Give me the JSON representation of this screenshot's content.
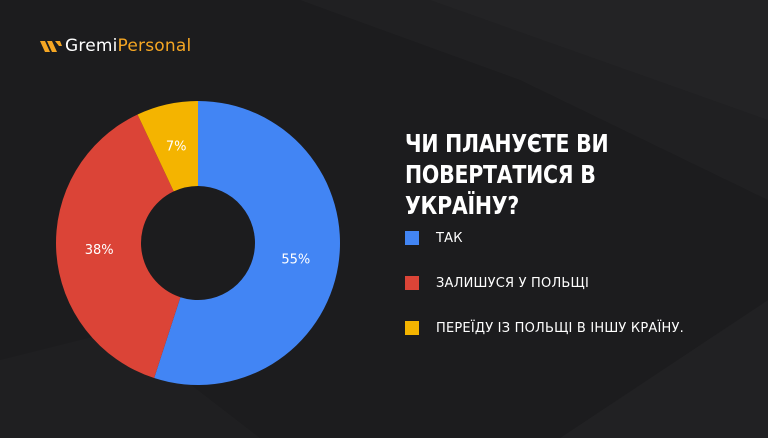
{
  "logo": {
    "part1": "Gremi",
    "part2": "Personal",
    "accent_color": "#f5a623"
  },
  "chart_data": {
    "type": "pie",
    "title": "ЧИ ПЛАНУЄТЕ ВИ ПОВЕРТАТИСЯ В УКРАЇНУ?",
    "title_lines": [
      "ЧИ ПЛАНУЄТЕ ВИ",
      "ПОВЕРТАТИСЯ В УКРАЇНУ?"
    ],
    "donut": true,
    "legend_position": "right",
    "categories": [
      "ТАК",
      "ЗАЛИШУСЯ У ПОЛЬЩІ",
      "ПЕРЕЇДУ ІЗ ПОЛЬЩІ В ІНШУ КРАЇНУ."
    ],
    "values": [
      55,
      38,
      7
    ],
    "labels": [
      "55%",
      "38%",
      "7%"
    ],
    "colors": [
      "#4285f4",
      "#db4437",
      "#f4b400"
    ]
  }
}
